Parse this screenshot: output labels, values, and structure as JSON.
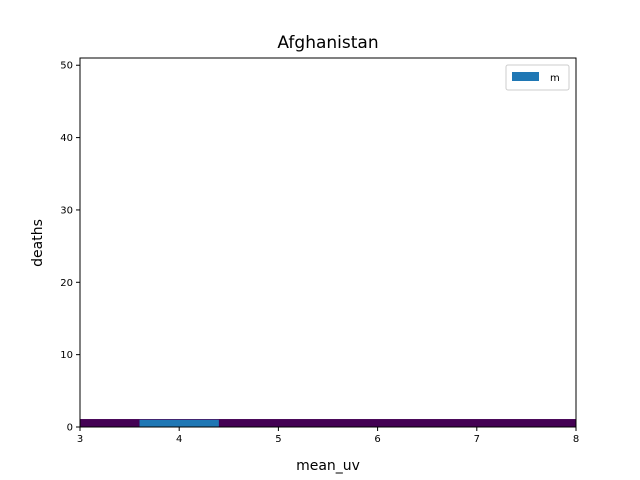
{
  "chart_data": {
    "type": "bar",
    "title": "Afghanistan",
    "xlabel": "mean_uv",
    "ylabel": "deaths",
    "xlim": [
      3,
      8
    ],
    "ylim": [
      0,
      51
    ],
    "xticks": [
      3,
      4,
      5,
      6,
      7,
      8
    ],
    "yticks": [
      0,
      10,
      20,
      30,
      40,
      50
    ],
    "background_band": {
      "x": [
        3,
        8
      ],
      "y": [
        0,
        1.1
      ],
      "color": "#440154"
    },
    "series": [
      {
        "name": "m",
        "color": "#1f77b4",
        "bars": [
          {
            "x": 4.0,
            "width": 0.8,
            "value": 1
          }
        ]
      }
    ],
    "legend": {
      "placement": "top-right",
      "labels": [
        "m"
      ]
    },
    "grid": false
  }
}
